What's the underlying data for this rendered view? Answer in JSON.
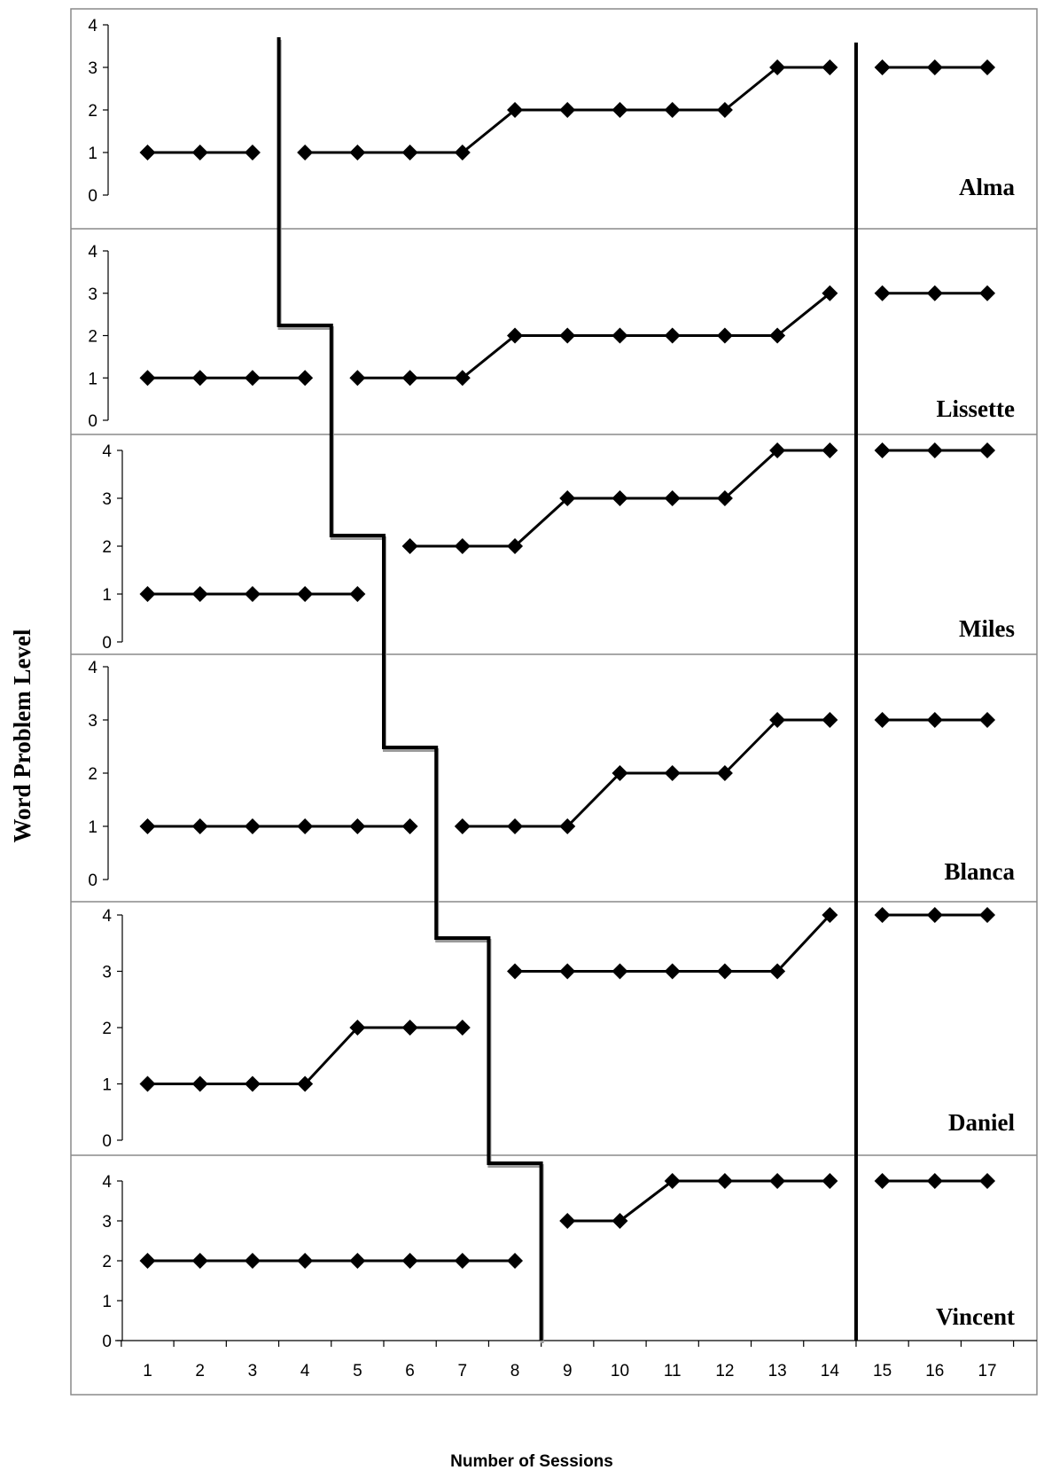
{
  "chart_data": {
    "type": "line",
    "marker": "diamond",
    "ylabel": "Word Problem Level",
    "xlabel": "Number of Sessions",
    "x_ticks": [
      1,
      2,
      3,
      4,
      5,
      6,
      7,
      8,
      9,
      10,
      11,
      12,
      13,
      14,
      15,
      16,
      17
    ],
    "y_ticks": [
      0,
      1,
      2,
      3,
      4
    ],
    "ylim": [
      0,
      4
    ],
    "xlim": [
      0.5,
      17.5
    ],
    "grid": false,
    "phase_change_after_session": {
      "Alma": 3,
      "Lissette": 4,
      "Miles": 5,
      "Blanca": 6,
      "Daniel": 7,
      "Vincent": 8
    },
    "maintenance_line_after_session": 14,
    "panels": [
      {
        "name": "Alma",
        "segments": [
          {
            "x": [
              1,
              2,
              3
            ],
            "y": [
              1,
              1,
              1
            ]
          },
          {
            "x": [
              4,
              5,
              6,
              7,
              8,
              9,
              10,
              11,
              12,
              13,
              14
            ],
            "y": [
              1,
              1,
              1,
              1,
              2,
              2,
              2,
              2,
              2,
              3,
              3
            ]
          },
          {
            "x": [
              15,
              16,
              17
            ],
            "y": [
              3,
              3,
              3
            ]
          }
        ]
      },
      {
        "name": "Lissette",
        "segments": [
          {
            "x": [
              1,
              2,
              3,
              4
            ],
            "y": [
              1,
              1,
              1,
              1
            ]
          },
          {
            "x": [
              5,
              6,
              7,
              8,
              9,
              10,
              11,
              12,
              13,
              14
            ],
            "y": [
              1,
              1,
              1,
              2,
              2,
              2,
              2,
              2,
              2,
              3
            ]
          },
          {
            "x": [
              15,
              16,
              17
            ],
            "y": [
              3,
              3,
              3
            ]
          }
        ]
      },
      {
        "name": "Miles",
        "segments": [
          {
            "x": [
              1,
              2,
              3,
              4,
              5
            ],
            "y": [
              1,
              1,
              1,
              1,
              1
            ]
          },
          {
            "x": [
              6,
              7,
              8,
              9,
              10,
              11,
              12,
              13,
              14
            ],
            "y": [
              2,
              2,
              2,
              3,
              3,
              3,
              3,
              4,
              4
            ]
          },
          {
            "x": [
              15,
              16,
              17
            ],
            "y": [
              4,
              4,
              4
            ]
          }
        ]
      },
      {
        "name": "Blanca",
        "segments": [
          {
            "x": [
              1,
              2,
              3,
              4,
              5,
              6
            ],
            "y": [
              1,
              1,
              1,
              1,
              1,
              1
            ]
          },
          {
            "x": [
              7,
              8,
              9,
              10,
              11,
              12,
              13,
              14
            ],
            "y": [
              1,
              1,
              1,
              2,
              2,
              2,
              3,
              3
            ]
          },
          {
            "x": [
              15,
              16,
              17
            ],
            "y": [
              3,
              3,
              3
            ]
          }
        ]
      },
      {
        "name": "Daniel",
        "segments": [
          {
            "x": [
              1,
              2,
              3,
              4,
              5,
              6,
              7
            ],
            "y": [
              1,
              1,
              1,
              1,
              2,
              2,
              2
            ]
          },
          {
            "x": [
              8,
              9,
              10,
              11,
              12,
              13,
              14
            ],
            "y": [
              3,
              3,
              3,
              3,
              3,
              3,
              4
            ]
          },
          {
            "x": [
              15,
              16,
              17
            ],
            "y": [
              4,
              4,
              4
            ]
          }
        ]
      },
      {
        "name": "Vincent",
        "segments": [
          {
            "x": [
              1,
              2,
              3,
              4,
              5,
              6,
              7,
              8
            ],
            "y": [
              2,
              2,
              2,
              2,
              2,
              2,
              2,
              2
            ]
          },
          {
            "x": [
              9,
              10,
              11,
              12,
              13,
              14
            ],
            "y": [
              3,
              3,
              4,
              4,
              4,
              4
            ]
          },
          {
            "x": [
              15,
              16,
              17
            ],
            "y": [
              4,
              4,
              4
            ]
          }
        ]
      }
    ]
  }
}
